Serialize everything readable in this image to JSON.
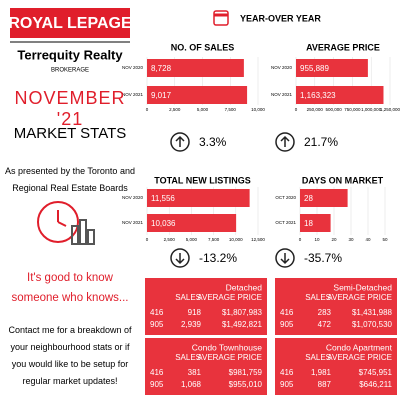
{
  "logo": {
    "brand": "ROYAL LEPAGE",
    "company": "Terrequity Realty",
    "subtitle": "BROKERAGE"
  },
  "left": {
    "month": "NOVEMBER '21",
    "heading": "MARKET STATS",
    "source": "As presented by the Toronto and Regional Real Estate Boards",
    "tagline": "It's good to know someone who knows...",
    "contact": "Contact me for a breakdown of your neighbourhood stats or if you would like to be setup for regular market updates!"
  },
  "header": "YEAR-OVER YEAR",
  "chart_data": [
    {
      "type": "bar",
      "orientation": "horizontal",
      "title": "NO. OF SALES",
      "categories": [
        "NOV 2020",
        "NOV 2021"
      ],
      "values": [
        8728,
        9017
      ],
      "value_labels": [
        "8,728",
        "9,017"
      ],
      "color": "#e8333d",
      "xlim": [
        0,
        10000
      ],
      "xticks": [
        0,
        {
          "value": 2500,
          "label": "2,500"
        },
        {
          "value": 5000,
          "label": "5,000"
        },
        {
          "value": 7500,
          "label": "7,500"
        },
        {
          "value": 10000,
          "label": "10,000"
        }
      ],
      "change": "3.3%",
      "trend": "up"
    },
    {
      "type": "bar",
      "orientation": "horizontal",
      "title": "AVERAGE PRICE",
      "categories": [
        "NOV 2020",
        "NOV 2021"
      ],
      "values": [
        955889,
        1163323
      ],
      "value_labels": [
        "955,889",
        "1,163,323"
      ],
      "color": "#e8333d",
      "xlim": [
        0,
        1250000
      ],
      "xticks": [
        0,
        {
          "value": 250000,
          "label": "250,000"
        },
        {
          "value": 500000,
          "label": "500,000"
        },
        {
          "value": 750000,
          "label": "750,000"
        },
        {
          "value": 1000000,
          "label": "1,000,000"
        },
        {
          "value": 1250000,
          "label": "1,250,000"
        }
      ],
      "change": "21.7%",
      "trend": "up"
    },
    {
      "type": "bar",
      "orientation": "horizontal",
      "title": "TOTAL NEW LISTINGS",
      "categories": [
        "NOV 2020",
        "NOV 2021"
      ],
      "values": [
        11556,
        10036
      ],
      "value_labels": [
        "11,556",
        "10,036"
      ],
      "color": "#e8333d",
      "xlim": [
        0,
        12500
      ],
      "xticks": [
        0,
        {
          "value": 2500,
          "label": "2,500"
        },
        {
          "value": 5000,
          "label": "5,000"
        },
        {
          "value": 7500,
          "label": "7,500"
        },
        {
          "value": 10000,
          "label": "10,000"
        },
        {
          "value": 12500,
          "label": "12,500"
        }
      ],
      "change": "-13.2%",
      "trend": "down"
    },
    {
      "type": "bar",
      "orientation": "horizontal",
      "title": "DAYS ON MARKET",
      "categories": [
        "OCT 2020",
        "OCT 2021"
      ],
      "values": [
        28,
        18
      ],
      "color": "#e8333d",
      "xlim": [
        0,
        50
      ],
      "xticks": [
        0,
        10,
        20,
        30,
        40,
        50
      ],
      "change": "-35.7%",
      "trend": "down"
    }
  ],
  "tables": [
    {
      "title": "Detached",
      "headers": [
        "SALES",
        "AVERAGE PRICE"
      ],
      "rows": [
        [
          "416",
          "918",
          "$1,807,983"
        ],
        [
          "905",
          "2,939",
          "$1,492,821"
        ]
      ]
    },
    {
      "title": "Semi-Detached",
      "headers": [
        "SALES",
        "AVERAGE PRICE"
      ],
      "rows": [
        [
          "416",
          "283",
          "$1,431,988"
        ],
        [
          "905",
          "472",
          "$1,070,530"
        ]
      ]
    },
    {
      "title": "Condo Townhouse",
      "headers": [
        "SALES",
        "AVERAGE PRICE"
      ],
      "rows": [
        [
          "416",
          "381",
          "$981,759"
        ],
        [
          "905",
          "1,068",
          "$955,010"
        ]
      ]
    },
    {
      "title": "Condo Apartment",
      "headers": [
        "SALES",
        "AVERAGE PRICE"
      ],
      "rows": [
        [
          "416",
          "1,981",
          "$745,951"
        ],
        [
          "905",
          "887",
          "$646,211"
        ]
      ]
    }
  ]
}
